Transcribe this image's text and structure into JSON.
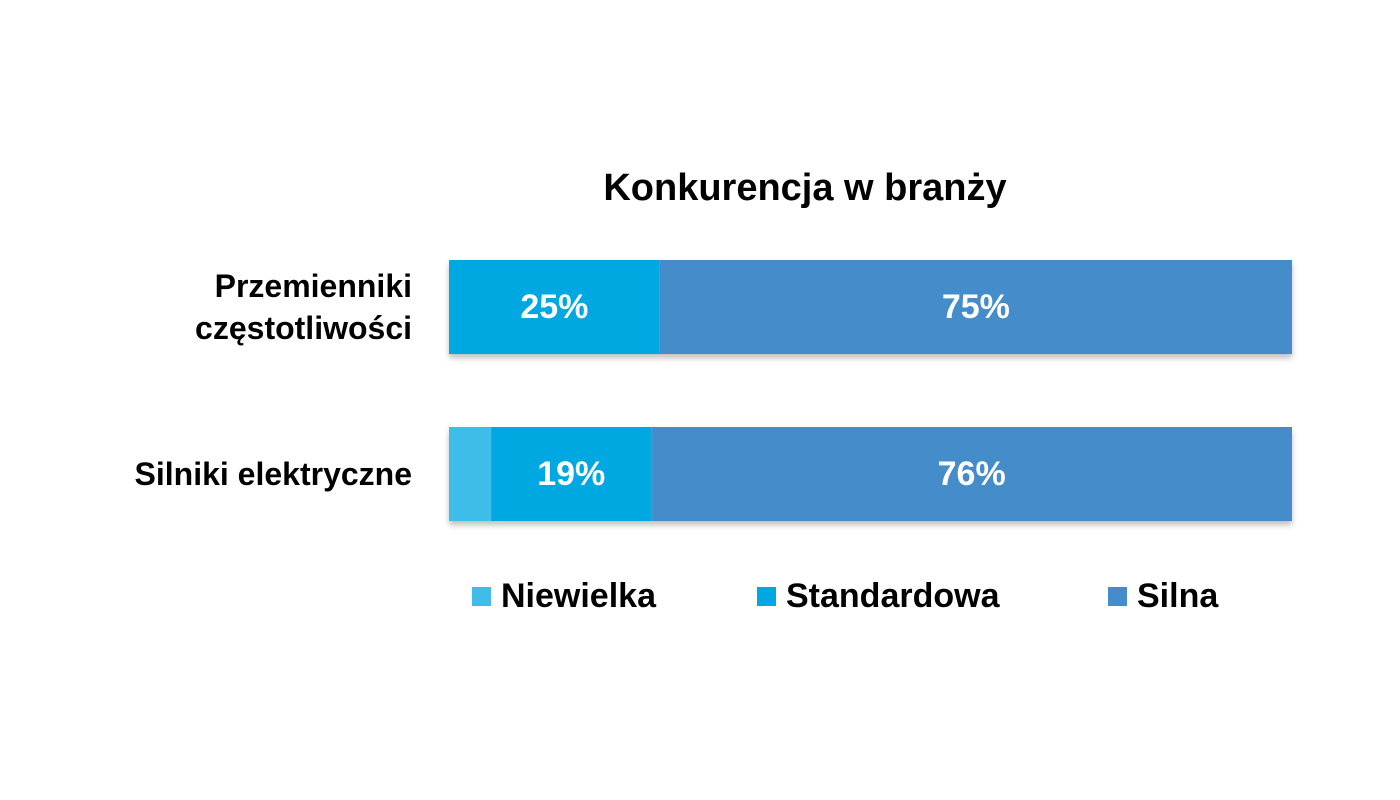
{
  "chart_data": {
    "type": "stacked-bar-horizontal",
    "title": "Konkurencja w branży",
    "categories": [
      "Przemienniki częstotliwości",
      "Silniki elektryczne"
    ],
    "series": [
      {
        "name": "Niewielka",
        "color": "#3dbde8",
        "values": [
          0,
          5
        ]
      },
      {
        "name": "Standardowa",
        "color": "#00a8e1",
        "values": [
          25,
          19
        ],
        "value_labels": [
          "25%",
          "19%"
        ]
      },
      {
        "name": "Silna",
        "color": "#458ccb",
        "values": [
          75,
          76
        ],
        "value_labels": [
          "75%",
          "76%"
        ]
      }
    ],
    "legend": "bottom"
  }
}
